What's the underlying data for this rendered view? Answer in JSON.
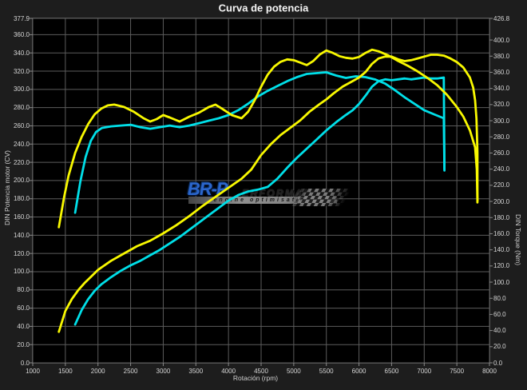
{
  "title": "Curva de potencia",
  "watermark": {
    "brand_prefix": "BR-P",
    "brand_suffix": "ERFORMANCE",
    "tagline": "engine optimisation"
  },
  "colors": {
    "background": "#1d1d1d",
    "plot_background": "#000000",
    "grid": "#5c5c5c",
    "frame": "#8a8a8a",
    "tick_text": "#d6d6d6",
    "yellow_series": "#f8f800",
    "cyan_series": "#00dfe8",
    "watermark_blue": "#2b66cc"
  },
  "chart_data": {
    "type": "line",
    "title": "Curva de potencia",
    "xlabel": "Rotación (rpm)",
    "ylabel_left": "DIN Potencia motor (CV)",
    "ylabel_right": "DIN Torque (Nm)",
    "grid": true,
    "legend": "none",
    "x_range": [
      1000,
      8000
    ],
    "x_ticks": [
      1000,
      1500,
      2000,
      2500,
      3000,
      3500,
      4000,
      4500,
      5000,
      5500,
      6000,
      6500,
      7000,
      7500,
      8000
    ],
    "y_left_range": [
      0,
      377.9
    ],
    "y_left_ticks": [
      377.9,
      360,
      340,
      320,
      300,
      280,
      260,
      240,
      220,
      200,
      180,
      160,
      140,
      120,
      100,
      80,
      60,
      40,
      20,
      0
    ],
    "y_right_range": [
      0,
      426.8
    ],
    "y_right_ticks": [
      426.8,
      400,
      380,
      360,
      340,
      320,
      300,
      280,
      260,
      240,
      220,
      200,
      180,
      160,
      140,
      120,
      100,
      80,
      60,
      40,
      20,
      0
    ],
    "series": [
      {
        "name": "torque-cyan-stock",
        "axis": "right",
        "unit": "Nm",
        "color": "#00dfe8",
        "points": [
          [
            1650,
            186
          ],
          [
            1730,
            225
          ],
          [
            1810,
            255
          ],
          [
            1890,
            275
          ],
          [
            1970,
            286
          ],
          [
            2060,
            291
          ],
          [
            2200,
            293
          ],
          [
            2350,
            294
          ],
          [
            2500,
            295
          ],
          [
            2650,
            292
          ],
          [
            2800,
            290
          ],
          [
            2950,
            292
          ],
          [
            3100,
            294
          ],
          [
            3250,
            292
          ],
          [
            3400,
            294
          ],
          [
            3550,
            297
          ],
          [
            3700,
            300
          ],
          [
            3850,
            303
          ],
          [
            4000,
            307
          ],
          [
            4150,
            313
          ],
          [
            4300,
            321
          ],
          [
            4450,
            330
          ],
          [
            4600,
            337
          ],
          [
            4750,
            343
          ],
          [
            4900,
            349
          ],
          [
            5050,
            354
          ],
          [
            5200,
            358
          ],
          [
            5350,
            359
          ],
          [
            5500,
            360
          ],
          [
            5650,
            356
          ],
          [
            5800,
            353
          ],
          [
            5950,
            355
          ],
          [
            6100,
            354
          ],
          [
            6250,
            351
          ],
          [
            6400,
            346
          ],
          [
            6550,
            338
          ],
          [
            6700,
            329
          ],
          [
            6850,
            321
          ],
          [
            7000,
            313
          ],
          [
            7150,
            308
          ],
          [
            7300,
            303
          ],
          [
            7310,
            240
          ]
        ]
      },
      {
        "name": "power-cyan-stock",
        "axis": "left",
        "unit": "CV",
        "color": "#00dfe8",
        "points": [
          [
            1650,
            42
          ],
          [
            1750,
            58
          ],
          [
            1850,
            70
          ],
          [
            1950,
            79
          ],
          [
            2050,
            86
          ],
          [
            2200,
            94
          ],
          [
            2350,
            101
          ],
          [
            2500,
            107
          ],
          [
            2650,
            112
          ],
          [
            2800,
            118
          ],
          [
            2950,
            124
          ],
          [
            3100,
            131
          ],
          [
            3250,
            138
          ],
          [
            3400,
            146
          ],
          [
            3550,
            154
          ],
          [
            3700,
            162
          ],
          [
            3850,
            170
          ],
          [
            4000,
            178
          ],
          [
            4150,
            184
          ],
          [
            4300,
            188
          ],
          [
            4450,
            190
          ],
          [
            4600,
            193
          ],
          [
            4750,
            202
          ],
          [
            4900,
            214
          ],
          [
            5050,
            225
          ],
          [
            5200,
            235
          ],
          [
            5350,
            245
          ],
          [
            5500,
            255
          ],
          [
            5650,
            264
          ],
          [
            5800,
            272
          ],
          [
            5900,
            277
          ],
          [
            6000,
            284
          ],
          [
            6100,
            293
          ],
          [
            6200,
            303
          ],
          [
            6300,
            309
          ],
          [
            6400,
            311
          ],
          [
            6500,
            310
          ],
          [
            6600,
            311
          ],
          [
            6700,
            312
          ],
          [
            6800,
            311
          ],
          [
            6900,
            312
          ],
          [
            7000,
            313
          ],
          [
            7100,
            312
          ],
          [
            7200,
            312
          ],
          [
            7300,
            313
          ],
          [
            7310,
            211
          ]
        ]
      },
      {
        "name": "torque-yellow-tuned",
        "axis": "right",
        "unit": "Nm",
        "color": "#f8f800",
        "points": [
          [
            1400,
            168
          ],
          [
            1480,
            205
          ],
          [
            1550,
            232
          ],
          [
            1650,
            260
          ],
          [
            1750,
            280
          ],
          [
            1850,
            296
          ],
          [
            1950,
            308
          ],
          [
            2050,
            315
          ],
          [
            2150,
            319
          ],
          [
            2250,
            320
          ],
          [
            2400,
            317
          ],
          [
            2550,
            311
          ],
          [
            2700,
            303
          ],
          [
            2800,
            299
          ],
          [
            2900,
            302
          ],
          [
            3000,
            307
          ],
          [
            3100,
            304
          ],
          [
            3250,
            299
          ],
          [
            3400,
            305
          ],
          [
            3550,
            310
          ],
          [
            3700,
            317
          ],
          [
            3800,
            320
          ],
          [
            3900,
            315
          ],
          [
            4050,
            307
          ],
          [
            4200,
            303
          ],
          [
            4300,
            311
          ],
          [
            4400,
            325
          ],
          [
            4500,
            342
          ],
          [
            4600,
            357
          ],
          [
            4700,
            367
          ],
          [
            4800,
            373
          ],
          [
            4900,
            376
          ],
          [
            5000,
            375
          ],
          [
            5100,
            372
          ],
          [
            5200,
            369
          ],
          [
            5300,
            374
          ],
          [
            5400,
            382
          ],
          [
            5500,
            387
          ],
          [
            5600,
            384
          ],
          [
            5700,
            380
          ],
          [
            5800,
            378
          ],
          [
            5900,
            377
          ],
          [
            6000,
            379
          ],
          [
            6100,
            384
          ],
          [
            6200,
            388
          ],
          [
            6300,
            386
          ],
          [
            6450,
            381
          ],
          [
            6600,
            374
          ],
          [
            6750,
            368
          ],
          [
            6900,
            361
          ],
          [
            7050,
            353
          ],
          [
            7200,
            344
          ],
          [
            7350,
            332
          ],
          [
            7500,
            317
          ],
          [
            7600,
            305
          ],
          [
            7700,
            288
          ],
          [
            7780,
            267
          ],
          [
            7805,
            240
          ],
          [
            7815,
            201
          ]
        ]
      },
      {
        "name": "power-yellow-tuned",
        "axis": "left",
        "unit": "CV",
        "color": "#f8f800",
        "points": [
          [
            1400,
            34
          ],
          [
            1500,
            57
          ],
          [
            1600,
            70
          ],
          [
            1700,
            80
          ],
          [
            1800,
            88
          ],
          [
            1900,
            95
          ],
          [
            2000,
            102
          ],
          [
            2200,
            112
          ],
          [
            2400,
            120
          ],
          [
            2600,
            128
          ],
          [
            2800,
            134
          ],
          [
            3000,
            142
          ],
          [
            3200,
            151
          ],
          [
            3400,
            161
          ],
          [
            3600,
            172
          ],
          [
            3800,
            182
          ],
          [
            4000,
            192
          ],
          [
            4200,
            202
          ],
          [
            4350,
            212
          ],
          [
            4500,
            228
          ],
          [
            4650,
            240
          ],
          [
            4800,
            250
          ],
          [
            4950,
            258
          ],
          [
            5100,
            266
          ],
          [
            5250,
            276
          ],
          [
            5400,
            284
          ],
          [
            5500,
            289
          ],
          [
            5600,
            295
          ],
          [
            5750,
            303
          ],
          [
            5900,
            309
          ],
          [
            6000,
            313
          ],
          [
            6100,
            319
          ],
          [
            6200,
            328
          ],
          [
            6300,
            334
          ],
          [
            6400,
            336
          ],
          [
            6500,
            336
          ],
          [
            6600,
            333
          ],
          [
            6700,
            331
          ],
          [
            6800,
            332
          ],
          [
            6900,
            334
          ],
          [
            7000,
            336
          ],
          [
            7100,
            338
          ],
          [
            7200,
            338
          ],
          [
            7300,
            337
          ],
          [
            7400,
            334
          ],
          [
            7500,
            330
          ],
          [
            7600,
            324
          ],
          [
            7700,
            313
          ],
          [
            7750,
            302
          ],
          [
            7780,
            288
          ],
          [
            7800,
            268
          ],
          [
            7810,
            245
          ],
          [
            7815,
            231
          ],
          [
            7815,
            176
          ]
        ]
      }
    ]
  }
}
